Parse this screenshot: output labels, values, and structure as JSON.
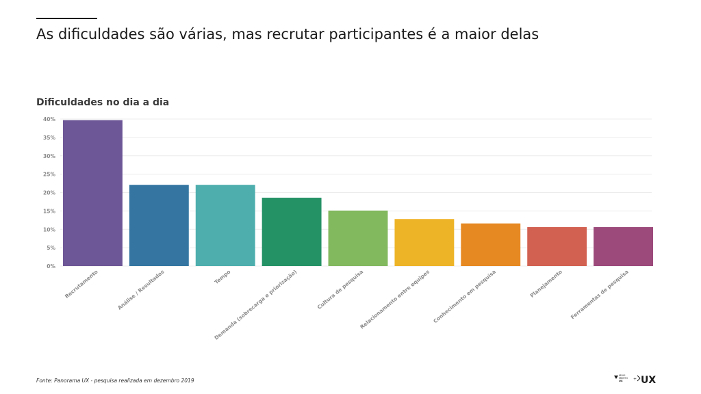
{
  "slide": {
    "headline": "As dificuldades são várias, mas recrutar participantes é a maior delas",
    "footer": "Fonte: Panorama UX - pesquisa realizada em dezembro 2019"
  },
  "logos": {
    "left_lines": [
      "MOVI",
      "MENTO",
      "UX"
    ],
    "separator": "+",
    "right": "UX"
  },
  "chart_data": {
    "type": "bar",
    "title": "Dificuldades no dia a dia",
    "xlabel": "",
    "ylabel": "",
    "ylim": [
      0,
      40
    ],
    "yticks": [
      0,
      5,
      10,
      15,
      20,
      25,
      30,
      35,
      40
    ],
    "ytick_labels": [
      "0%",
      "5%",
      "10%",
      "15%",
      "20%",
      "25%",
      "30%",
      "35%",
      "40%"
    ],
    "grid": true,
    "legend": "none",
    "categories": [
      "Recrutamento",
      "Análise / Resultados",
      "Tempo",
      "Demanda (sobrecarga e priorização)",
      "Cultura de pesquisa",
      "Relacionamento entre equipes",
      "Conhecimento em pesquisa",
      "Planejamento",
      "Ferramentas de pesquisa"
    ],
    "values": [
      39.7,
      22.1,
      22.1,
      18.6,
      15.1,
      12.8,
      11.6,
      10.6,
      10.6
    ],
    "colors": [
      "#6e5797",
      "#3476a1",
      "#4daead",
      "#259266",
      "#82b85e",
      "#eeb428",
      "#e68922",
      "#d26151",
      "#9c4a7c"
    ]
  }
}
